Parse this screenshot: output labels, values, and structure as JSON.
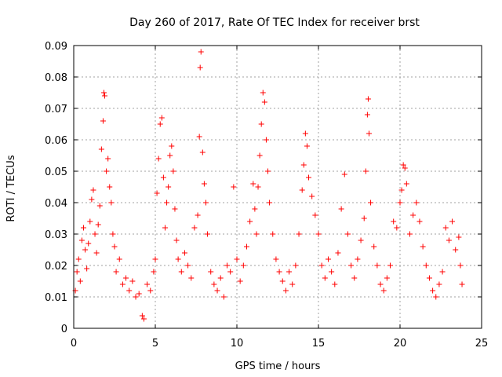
{
  "chart_data": {
    "type": "scatter",
    "title": "Day 260 of 2017, Rate Of TEC Index for receiver brst",
    "xlabel": "GPS time / hours",
    "ylabel": "ROTI / TECUs",
    "xlim": [
      0,
      25
    ],
    "ylim": [
      0,
      0.09
    ],
    "x_ticks": [
      0,
      5,
      10,
      15,
      20,
      25
    ],
    "x_tick_labels": [
      "0",
      "5",
      "10",
      "15",
      "20",
      "25"
    ],
    "y_ticks": [
      0,
      0.01,
      0.02,
      0.03,
      0.04,
      0.05,
      0.06,
      0.07,
      0.08,
      0.09
    ],
    "y_tick_labels": [
      "0",
      "0.01",
      "0.02",
      "0.03",
      "0.04",
      "0.05",
      "0.06",
      "0.07",
      "0.08",
      "0.09"
    ],
    "grid": true,
    "marker": "+",
    "color": "#ff0000",
    "points": [
      [
        0.1,
        0.012
      ],
      [
        0.2,
        0.018
      ],
      [
        0.3,
        0.022
      ],
      [
        0.4,
        0.015
      ],
      [
        0.5,
        0.028
      ],
      [
        0.6,
        0.032
      ],
      [
        0.7,
        0.025
      ],
      [
        0.8,
        0.019
      ],
      [
        0.9,
        0.027
      ],
      [
        1.0,
        0.034
      ],
      [
        1.1,
        0.041
      ],
      [
        1.2,
        0.044
      ],
      [
        1.3,
        0.03
      ],
      [
        1.4,
        0.024
      ],
      [
        1.5,
        0.033
      ],
      [
        1.6,
        0.039
      ],
      [
        1.7,
        0.057
      ],
      [
        1.8,
        0.066
      ],
      [
        1.85,
        0.075
      ],
      [
        1.9,
        0.074
      ],
      [
        2.0,
        0.05
      ],
      [
        2.1,
        0.054
      ],
      [
        2.2,
        0.045
      ],
      [
        2.3,
        0.04
      ],
      [
        2.4,
        0.03
      ],
      [
        2.5,
        0.026
      ],
      [
        2.6,
        0.018
      ],
      [
        2.8,
        0.022
      ],
      [
        3.0,
        0.014
      ],
      [
        3.2,
        0.016
      ],
      [
        3.4,
        0.012
      ],
      [
        3.6,
        0.015
      ],
      [
        3.8,
        0.01
      ],
      [
        4.0,
        0.011
      ],
      [
        4.2,
        0.004
      ],
      [
        4.3,
        0.003
      ],
      [
        4.5,
        0.014
      ],
      [
        4.7,
        0.012
      ],
      [
        4.9,
        0.018
      ],
      [
        5.0,
        0.022
      ],
      [
        5.1,
        0.043
      ],
      [
        5.2,
        0.054
      ],
      [
        5.3,
        0.065
      ],
      [
        5.4,
        0.067
      ],
      [
        5.5,
        0.048
      ],
      [
        5.6,
        0.032
      ],
      [
        5.7,
        0.04
      ],
      [
        5.8,
        0.045
      ],
      [
        5.9,
        0.055
      ],
      [
        6.0,
        0.058
      ],
      [
        6.1,
        0.05
      ],
      [
        6.2,
        0.038
      ],
      [
        6.3,
        0.028
      ],
      [
        6.4,
        0.022
      ],
      [
        6.6,
        0.018
      ],
      [
        6.8,
        0.024
      ],
      [
        7.0,
        0.02
      ],
      [
        7.2,
        0.016
      ],
      [
        7.4,
        0.032
      ],
      [
        7.6,
        0.036
      ],
      [
        7.7,
        0.061
      ],
      [
        7.75,
        0.083
      ],
      [
        7.8,
        0.088
      ],
      [
        7.9,
        0.056
      ],
      [
        8.0,
        0.046
      ],
      [
        8.1,
        0.04
      ],
      [
        8.2,
        0.03
      ],
      [
        8.4,
        0.018
      ],
      [
        8.6,
        0.014
      ],
      [
        8.8,
        0.012
      ],
      [
        9.0,
        0.016
      ],
      [
        9.2,
        0.01
      ],
      [
        9.4,
        0.02
      ],
      [
        9.6,
        0.018
      ],
      [
        9.8,
        0.045
      ],
      [
        10.0,
        0.022
      ],
      [
        10.2,
        0.015
      ],
      [
        10.4,
        0.02
      ],
      [
        10.6,
        0.026
      ],
      [
        10.8,
        0.034
      ],
      [
        11.0,
        0.046
      ],
      [
        11.1,
        0.038
      ],
      [
        11.2,
        0.03
      ],
      [
        11.3,
        0.045
      ],
      [
        11.4,
        0.055
      ],
      [
        11.5,
        0.065
      ],
      [
        11.6,
        0.075
      ],
      [
        11.7,
        0.072
      ],
      [
        11.8,
        0.06
      ],
      [
        11.9,
        0.05
      ],
      [
        12.0,
        0.04
      ],
      [
        12.2,
        0.03
      ],
      [
        12.4,
        0.022
      ],
      [
        12.6,
        0.018
      ],
      [
        12.8,
        0.015
      ],
      [
        13.0,
        0.012
      ],
      [
        13.2,
        0.018
      ],
      [
        13.4,
        0.014
      ],
      [
        13.6,
        0.02
      ],
      [
        13.8,
        0.03
      ],
      [
        14.0,
        0.044
      ],
      [
        14.1,
        0.052
      ],
      [
        14.2,
        0.062
      ],
      [
        14.3,
        0.058
      ],
      [
        14.4,
        0.048
      ],
      [
        14.6,
        0.042
      ],
      [
        14.8,
        0.036
      ],
      [
        15.0,
        0.03
      ],
      [
        15.2,
        0.02
      ],
      [
        15.4,
        0.016
      ],
      [
        15.6,
        0.022
      ],
      [
        15.8,
        0.018
      ],
      [
        16.0,
        0.014
      ],
      [
        16.2,
        0.024
      ],
      [
        16.4,
        0.038
      ],
      [
        16.6,
        0.049
      ],
      [
        16.8,
        0.03
      ],
      [
        17.0,
        0.02
      ],
      [
        17.2,
        0.016
      ],
      [
        17.4,
        0.022
      ],
      [
        17.6,
        0.028
      ],
      [
        17.8,
        0.035
      ],
      [
        17.9,
        0.05
      ],
      [
        18.0,
        0.068
      ],
      [
        18.05,
        0.073
      ],
      [
        18.1,
        0.062
      ],
      [
        18.2,
        0.04
      ],
      [
        18.4,
        0.026
      ],
      [
        18.6,
        0.02
      ],
      [
        18.8,
        0.014
      ],
      [
        19.0,
        0.012
      ],
      [
        19.2,
        0.016
      ],
      [
        19.4,
        0.02
      ],
      [
        19.6,
        0.034
      ],
      [
        19.8,
        0.032
      ],
      [
        20.0,
        0.04
      ],
      [
        20.1,
        0.044
      ],
      [
        20.2,
        0.052
      ],
      [
        20.3,
        0.051
      ],
      [
        20.4,
        0.046
      ],
      [
        20.6,
        0.03
      ],
      [
        20.8,
        0.036
      ],
      [
        21.0,
        0.04
      ],
      [
        21.2,
        0.034
      ],
      [
        21.4,
        0.026
      ],
      [
        21.6,
        0.02
      ],
      [
        21.8,
        0.016
      ],
      [
        22.0,
        0.012
      ],
      [
        22.2,
        0.01
      ],
      [
        22.4,
        0.014
      ],
      [
        22.6,
        0.018
      ],
      [
        22.8,
        0.032
      ],
      [
        23.0,
        0.028
      ],
      [
        23.2,
        0.034
      ],
      [
        23.4,
        0.025
      ],
      [
        23.6,
        0.029
      ],
      [
        23.7,
        0.02
      ],
      [
        23.8,
        0.014
      ]
    ]
  }
}
